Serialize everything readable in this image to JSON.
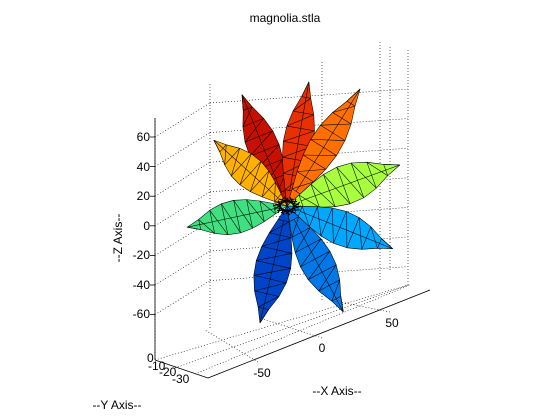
{
  "figure": {
    "title": "magnolia.stla"
  },
  "chart_data": {
    "type": "surface3d",
    "title": "magnolia.stla",
    "xlabel": "--X Axis--",
    "ylabel": "--Y Axis--",
    "zlabel": "--Z Axis--",
    "x_ticks": [
      "-50",
      "0",
      "50"
    ],
    "y_ticks": [
      "0",
      "-10",
      "-20",
      "-30"
    ],
    "z_ticks": [
      "60",
      "40",
      "20",
      "0",
      "-20",
      "-40",
      "-60"
    ],
    "colormap": "jet",
    "grid": true,
    "petals": [
      {
        "angle_deg": 112,
        "length": 1.0,
        "width": 0.34,
        "color": "#c81000"
      },
      {
        "angle_deg": 80,
        "length": 1.05,
        "width": 0.32,
        "color": "#e83000"
      },
      {
        "angle_deg": 58,
        "length": 1.15,
        "width": 0.33,
        "color": "#ff7000"
      },
      {
        "angle_deg": 138,
        "length": 0.82,
        "width": 0.34,
        "color": "#ffb000"
      },
      {
        "angle_deg": 20,
        "length": 1.0,
        "width": 0.42,
        "color": "#a8ff40"
      },
      {
        "angle_deg": 192,
        "length": 0.85,
        "width": 0.36,
        "color": "#40e080"
      },
      {
        "angle_deg": -22,
        "length": 0.95,
        "width": 0.37,
        "color": "#00a8ff"
      },
      {
        "angle_deg": -62,
        "length": 1.0,
        "width": 0.36,
        "color": "#0078e8"
      },
      {
        "angle_deg": -103,
        "length": 1.0,
        "width": 0.38,
        "color": "#0044c8"
      }
    ]
  }
}
